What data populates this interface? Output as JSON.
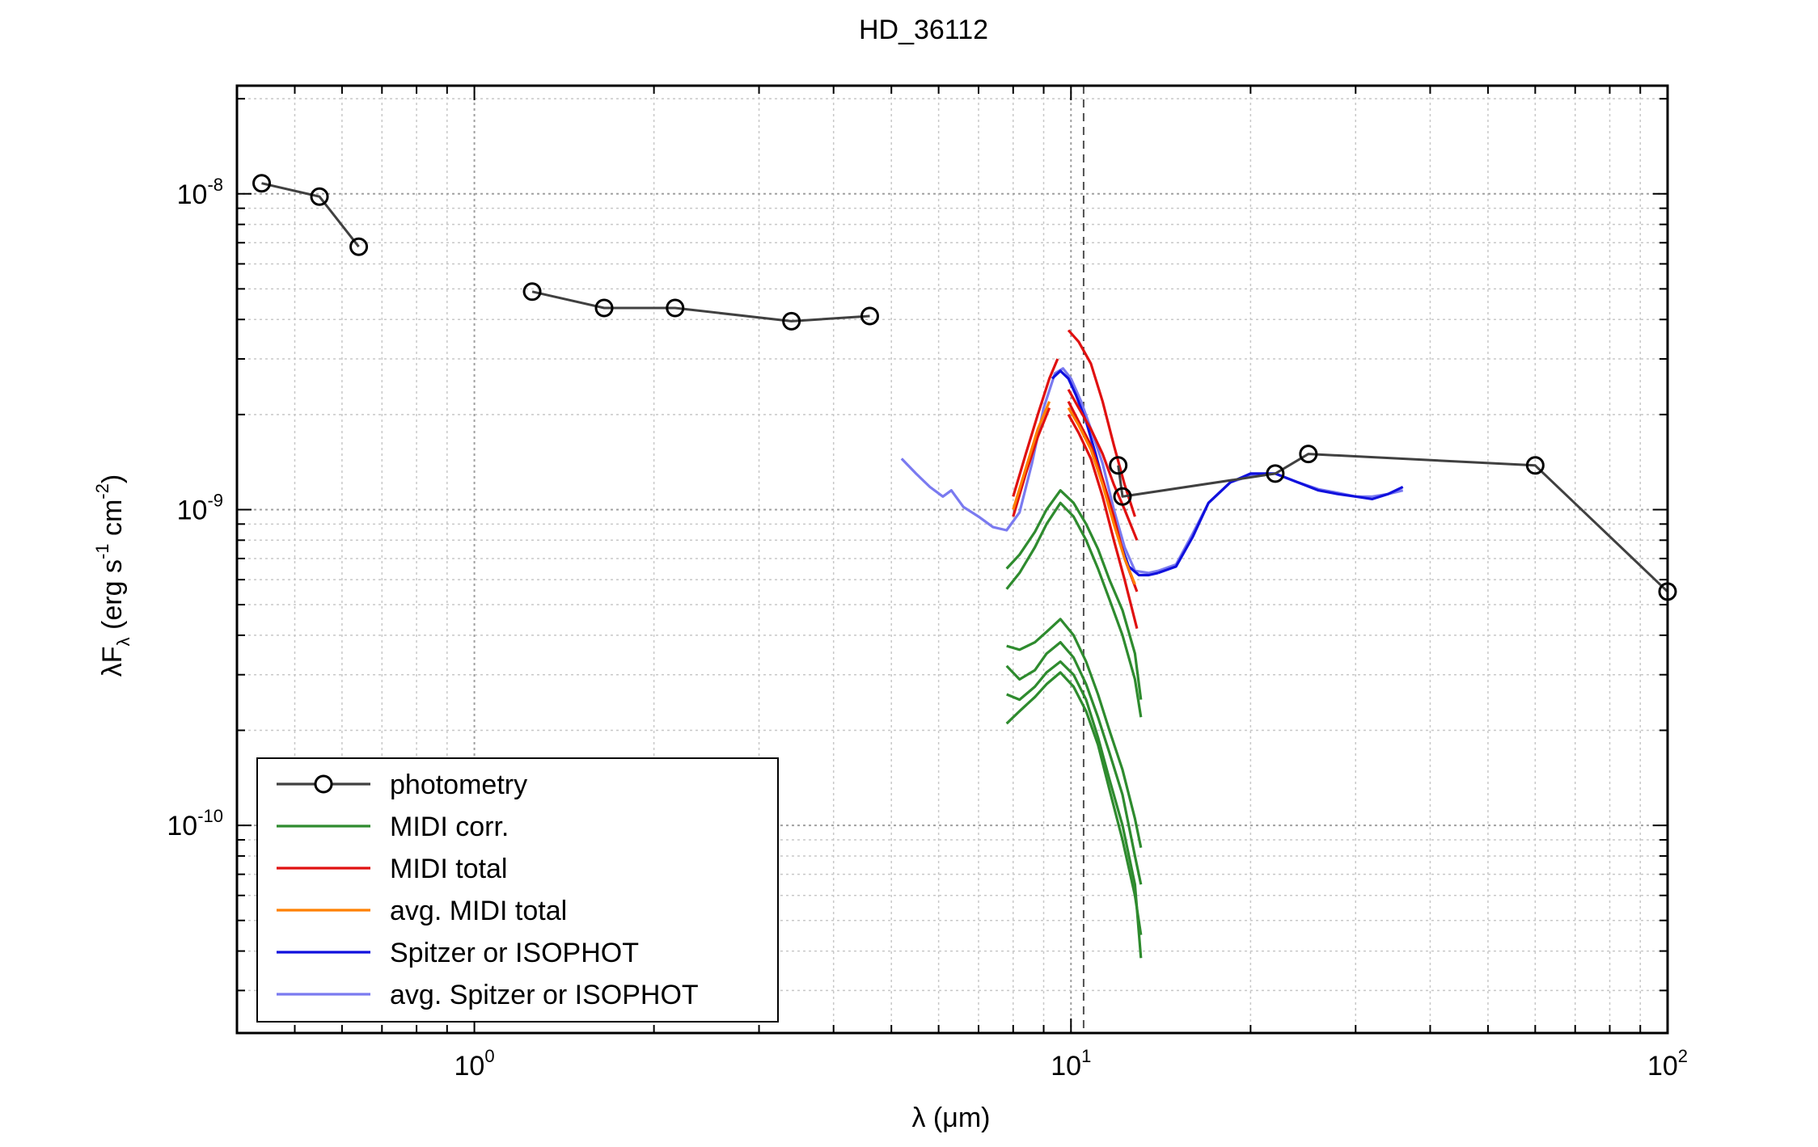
{
  "chart_data": {
    "type": "line",
    "title": "HD_36112",
    "xlabel": "λ (μm)",
    "ylabel_parts": [
      "λF",
      "λ",
      " (erg s",
      "-1",
      " cm",
      "-2",
      ")"
    ],
    "x_scale": "log",
    "y_scale": "log",
    "xlim": [
      0.4,
      100
    ],
    "ylim": [
      2.2e-11,
      2.2e-08
    ],
    "grid": true,
    "legend_placement": "bottom-left",
    "vertical_marker_x": 10.5,
    "x_ticks": [
      {
        "value": 1,
        "base": "10",
        "exp": "0"
      },
      {
        "value": 10,
        "base": "10",
        "exp": "1"
      },
      {
        "value": 100,
        "base": "10",
        "exp": "2"
      }
    ],
    "y_ticks": [
      {
        "value": 1e-08,
        "base": "10",
        "exp": "-8"
      },
      {
        "value": 1e-09,
        "base": "10",
        "exp": "-9"
      },
      {
        "value": 1e-10,
        "base": "10",
        "exp": "-10"
      }
    ],
    "legend": [
      {
        "label": "photometry",
        "color": "#404040",
        "marker": "circle"
      },
      {
        "label": "MIDI corr.",
        "color": "#2e8b2e"
      },
      {
        "label": "MIDI total",
        "color": "#e01010"
      },
      {
        "label": "avg. MIDI total",
        "color": "#ff8000"
      },
      {
        "label": "Spitzer or ISOPHOT",
        "color": "#1010dd"
      },
      {
        "label": "avg. Spitzer or ISOPHOT",
        "color": "#7a7af0"
      }
    ],
    "series": [
      {
        "name": "photometry",
        "color": "#404040",
        "style": "markers-lines",
        "segments": [
          {
            "x": [
              0.44,
              0.55,
              0.64
            ],
            "y": [
              1.08e-08,
              9.8e-09,
              6.8e-09
            ]
          },
          {
            "x": [
              1.25,
              1.65,
              2.17,
              3.4,
              4.6
            ],
            "y": [
              4.9e-09,
              4.35e-09,
              4.35e-09,
              3.95e-09,
              4.1e-09
            ]
          },
          {
            "x": [
              12,
              12.2,
              22,
              25,
              60,
              100
            ],
            "y": [
              1.38e-09,
              1.1e-09,
              1.3e-09,
              1.5e-09,
              1.38e-09,
              5.5e-10
            ]
          }
        ]
      },
      {
        "name": "MIDI corr.",
        "color": "#2e8b2e",
        "style": "lines",
        "segments": [
          {
            "x": [
              7.8,
              8.2,
              8.7,
              9.1,
              9.6,
              10.1,
              10.6,
              11.1,
              11.6,
              12.2,
              12.8,
              13.1
            ],
            "y": [
              6.5e-10,
              7.2e-10,
              8.5e-10,
              1e-09,
              1.15e-09,
              1.05e-09,
              9e-10,
              7.5e-10,
              6e-10,
              4.8e-10,
              3.5e-10,
              2.5e-10
            ]
          },
          {
            "x": [
              7.8,
              8.2,
              8.7,
              9.1,
              9.6,
              10.1,
              10.6,
              11.1,
              11.6,
              12.2,
              12.8,
              13.1
            ],
            "y": [
              5.6e-10,
              6.3e-10,
              7.6e-10,
              9e-10,
              1.05e-09,
              9.5e-10,
              8e-10,
              6.5e-10,
              5.2e-10,
              4e-10,
              2.9e-10,
              2.2e-10
            ]
          },
          {
            "x": [
              7.8,
              8.2,
              8.7,
              9.1,
              9.6,
              10.1,
              10.6,
              11.1,
              11.6,
              12.2,
              12.8,
              13.1
            ],
            "y": [
              3.7e-10,
              3.6e-10,
              3.8e-10,
              4.1e-10,
              4.5e-10,
              4e-10,
              3.3e-10,
              2.6e-10,
              2e-10,
              1.5e-10,
              1.05e-10,
              8.5e-11
            ]
          },
          {
            "x": [
              7.8,
              8.2,
              8.7,
              9.1,
              9.6,
              10.1,
              10.6,
              11.1,
              11.6,
              12.2,
              12.8,
              13.1
            ],
            "y": [
              3.2e-10,
              2.9e-10,
              3.1e-10,
              3.5e-10,
              3.8e-10,
              3.4e-10,
              2.8e-10,
              2.2e-10,
              1.7e-10,
              1.25e-10,
              8e-11,
              6.5e-11
            ]
          },
          {
            "x": [
              7.8,
              8.2,
              8.7,
              9.1,
              9.6,
              10.1,
              10.6,
              11.1,
              11.6,
              12.2,
              12.8,
              13.1
            ],
            "y": [
              2.6e-10,
              2.5e-10,
              2.75e-10,
              3.05e-10,
              3.3e-10,
              3e-10,
              2.5e-10,
              1.9e-10,
              1.4e-10,
              1e-10,
              6.5e-11,
              3.8e-11
            ]
          },
          {
            "x": [
              7.8,
              8.2,
              8.7,
              9.1,
              9.6,
              10.1,
              10.6,
              11.1,
              11.6,
              12.2,
              12.8,
              13.1
            ],
            "y": [
              2.1e-10,
              2.3e-10,
              2.55e-10,
              2.8e-10,
              3.05e-10,
              2.75e-10,
              2.3e-10,
              1.8e-10,
              1.3e-10,
              9e-11,
              6e-11,
              4.5e-11
            ]
          }
        ]
      },
      {
        "name": "MIDI total",
        "color": "#e01010",
        "style": "lines",
        "segments": [
          {
            "x": [
              8.0,
              8.4,
              8.8,
              9.2,
              9.5
            ],
            "y": [
              1.1e-09,
              1.5e-09,
              2e-09,
              2.6e-09,
              3e-09
            ]
          },
          {
            "x": [
              8.0,
              8.4,
              8.8,
              9.2
            ],
            "y": [
              9.5e-10,
              1.3e-09,
              1.7e-09,
              2.1e-09
            ]
          },
          {
            "x": [
              9.9,
              10.3,
              10.8,
              11.3,
              11.8,
              12.3,
              12.8
            ],
            "y": [
              3.7e-09,
              3.4e-09,
              2.9e-09,
              2.2e-09,
              1.6e-09,
              1.2e-09,
              9.5e-10
            ]
          },
          {
            "x": [
              9.9,
              10.3,
              10.8,
              11.3,
              11.8,
              12.3,
              12.9
            ],
            "y": [
              2.4e-09,
              2.1e-09,
              1.8e-09,
              1.5e-09,
              1.2e-09,
              1e-09,
              8e-10
            ]
          },
          {
            "x": [
              9.9,
              10.3,
              10.8,
              11.3,
              11.8,
              12.3,
              12.9
            ],
            "y": [
              2.2e-09,
              1.9e-09,
              1.6e-09,
              1.25e-09,
              9.5e-10,
              7e-10,
              5.5e-10
            ]
          },
          {
            "x": [
              9.9,
              10.3,
              10.8,
              11.3,
              11.8,
              12.3,
              12.9
            ],
            "y": [
              2e-09,
              1.75e-09,
              1.45e-09,
              1.1e-09,
              8e-10,
              6e-10,
              4.2e-10
            ]
          }
        ]
      },
      {
        "name": "avg. MIDI total",
        "color": "#ff8000",
        "style": "lines",
        "segments": [
          {
            "x": [
              8.0,
              8.4,
              8.8,
              9.2
            ],
            "y": [
              1e-09,
              1.35e-09,
              1.8e-09,
              2.2e-09
            ]
          },
          {
            "x": [
              9.9,
              10.3,
              10.8,
              11.3,
              11.8,
              12.3,
              12.8
            ],
            "y": [
              2.1e-09,
              1.85e-09,
              1.55e-09,
              1.2e-09,
              9e-10,
              7e-10,
              5.8e-10
            ]
          }
        ]
      },
      {
        "name": "Spitzer or ISOPHOT",
        "color": "#1010dd",
        "style": "lines",
        "segments": [
          {
            "x": [
              9.3,
              9.6,
              9.9,
              10.2,
              10.6,
              11.0,
              11.5,
              12.0,
              12.5,
              13.0,
              13.5,
              14.0
            ],
            "y": [
              2.6e-09,
              2.75e-09,
              2.6e-09,
              2.3e-09,
              1.9e-09,
              1.5e-09,
              1.1e-09,
              8.2e-10,
              6.6e-10,
              6.2e-10,
              6.2e-10,
              6.3e-10
            ]
          },
          {
            "x": [
              14.0,
              15.0,
              16.0,
              17.0,
              18.5,
              20.0,
              22.0,
              24.0,
              26.0,
              28.0,
              30.0,
              32.0,
              34.0,
              36.0
            ],
            "y": [
              6.3e-10,
              6.6e-10,
              8.2e-10,
              1.05e-09,
              1.22e-09,
              1.3e-09,
              1.3e-09,
              1.22e-09,
              1.15e-09,
              1.12e-09,
              1.1e-09,
              1.08e-09,
              1.12e-09,
              1.18e-09
            ]
          }
        ]
      },
      {
        "name": "avg. Spitzer or ISOPHOT",
        "color": "#7a7af0",
        "style": "lines",
        "segments": [
          {
            "x": [
              5.2,
              5.5,
              5.8,
              6.1,
              6.3,
              6.6,
              7.0,
              7.4,
              7.8,
              8.2,
              8.6,
              9.0,
              9.4,
              9.7,
              10.0,
              10.4,
              10.8,
              11.3,
              11.8,
              12.3,
              12.8,
              13.5,
              14.0,
              15.0,
              16.0,
              17.0,
              18.5,
              20.0,
              22.0,
              24.0,
              26.0,
              28.0,
              30.0,
              32.0,
              34.0,
              36.0
            ],
            "y": [
              1.45e-09,
              1.3e-09,
              1.18e-09,
              1.1e-09,
              1.15e-09,
              1.02e-09,
              9.5e-10,
              8.8e-10,
              8.6e-10,
              9.8e-10,
              1.4e-09,
              2.1e-09,
              2.7e-09,
              2.8e-09,
              2.6e-09,
              2.2e-09,
              1.8e-09,
              1.4e-09,
              1e-09,
              7.6e-10,
              6.4e-10,
              6.3e-10,
              6.4e-10,
              6.7e-10,
              8.4e-10,
              1.05e-09,
              1.22e-09,
              1.28e-09,
              1.3e-09,
              1.22e-09,
              1.16e-09,
              1.13e-09,
              1.1e-09,
              1.1e-09,
              1.12e-09,
              1.15e-09
            ]
          }
        ]
      }
    ]
  }
}
